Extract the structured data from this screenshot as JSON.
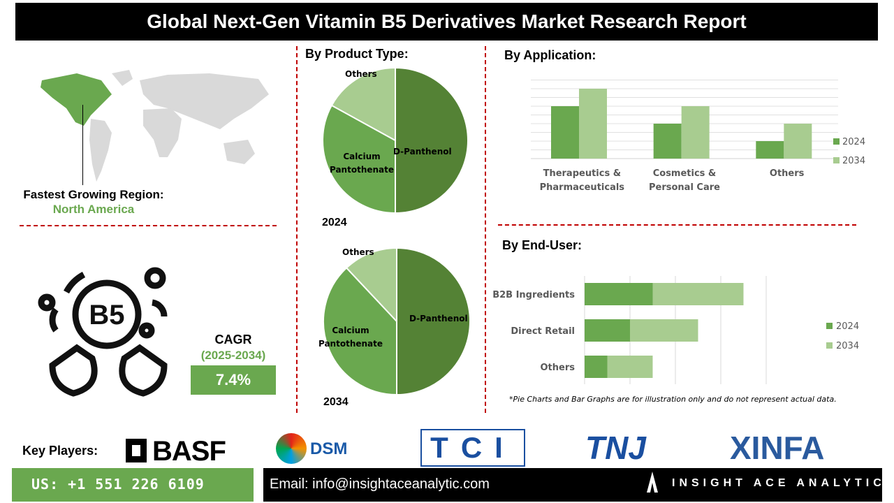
{
  "title": "Global Next-Gen Vitamin B5 Derivatives Market Research Report",
  "region": {
    "label": "Fastest Growing Region:",
    "value": "North America"
  },
  "cagr": {
    "label": "CAGR",
    "period": "(2025-2034)",
    "value": "7.4%"
  },
  "icon_text": "B5",
  "colors": {
    "dark_green": "#5e9a3c",
    "mid_green": "#6aa84f",
    "light_green": "#a8cc90",
    "accent_red": "#c00000"
  },
  "sections": {
    "product": "By Product Type:",
    "application": "By Application:",
    "end_user": "By End-User:"
  },
  "note": "*Pie Charts and Bar Graphs are for illustration only and do not represent actual data.",
  "chart_data": [
    {
      "type": "pie",
      "title": "2024",
      "labels": [
        "D-Panthenol",
        "Calcium Pantothenate",
        "Others"
      ],
      "values": [
        50,
        33,
        17
      ],
      "colors": [
        "#548235",
        "#6aa84f",
        "#a8cc90"
      ]
    },
    {
      "type": "pie",
      "title": "2034",
      "labels": [
        "D-Panthenol",
        "Calcium Pantothenate",
        "Others"
      ],
      "values": [
        50,
        38,
        12
      ],
      "colors": [
        "#548235",
        "#6aa84f",
        "#a8cc90"
      ]
    },
    {
      "type": "bar",
      "categories": [
        "Therapeutics & Pharmaceuticals",
        "Cosmetics & Personal Care",
        "Others"
      ],
      "series": [
        {
          "name": "2024",
          "values": [
            6,
            4,
            2
          ]
        },
        {
          "name": "2034",
          "values": [
            8,
            6,
            4
          ]
        }
      ],
      "ylim": [
        0,
        9
      ],
      "grid": true,
      "legend": "right"
    },
    {
      "type": "bar",
      "orientation": "horizontal",
      "stacked": true,
      "categories": [
        "B2B Ingredients",
        "Direct Retail",
        "Others"
      ],
      "series": [
        {
          "name": "2024",
          "values": [
            1.5,
            1,
            0.5
          ]
        },
        {
          "name": "2034",
          "values": [
            2,
            1.5,
            1
          ]
        }
      ],
      "xlim": [
        0,
        4
      ],
      "grid": true,
      "legend": "right"
    }
  ],
  "key_players": {
    "label": "Key Players:",
    "companies": [
      "BASF",
      "DSM",
      "TCI",
      "TNJ",
      "XINFA"
    ]
  },
  "footer": {
    "phone": "US: +1 551 226 6109",
    "email": "Email: info@insightaceanalytic.com",
    "brand": "INSIGHT ACE ANALYTIC"
  }
}
